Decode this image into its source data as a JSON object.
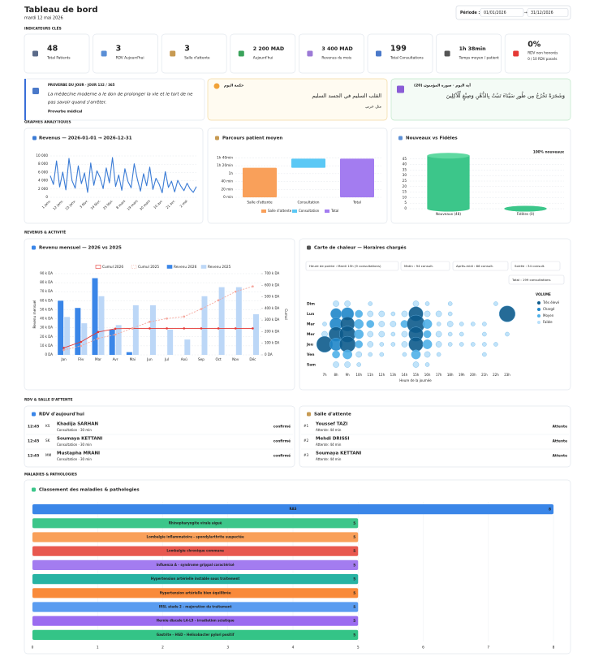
{
  "header": {
    "title": "Tableau de bord",
    "date": "mardi 12 mai 2026",
    "period_label": "Période :",
    "period_start": "01/01/2026",
    "period_sep": "→",
    "period_end": "31/12/2026"
  },
  "sections": [
    "INDICATEURS CLÉS",
    "GRAPHES ANALYTIQUES",
    "REVENUS & ACTIVITÉ",
    "RDV & SALLE D'ATTENTE",
    "MALADIES & PATHOLOGIES"
  ],
  "kpis": [
    {
      "value": 48,
      "label": "Total Patients"
    },
    {
      "value": 3,
      "label": "RDV Aujourd'hui"
    },
    {
      "value": 3,
      "label": "Salle d'attente"
    },
    {
      "value": "2 200 MAD",
      "label": "Aujourd'hui"
    },
    {
      "value": "3 400 MAD",
      "label": "Revenus du mois"
    },
    {
      "value": 199,
      "label": "Total Consultations"
    },
    {
      "value": "1h 38min",
      "label": "Temps moyen / patient"
    },
    {
      "value": "0%",
      "label": "RDV non honorés",
      "note": "0 / 10 RDV passés"
    }
  ],
  "quotes": [
    {
      "label": "PROVERBE DU JOUR · JOUR 132 / 365",
      "lines": [
        "La médecine moderne a le don de prolonger la vie et le tort de ne",
        "pas savoir quand s'arrêter."
      ],
      "source": "Proverbe médical"
    },
    {
      "label": "حكمة اليوم",
      "lines": [
        "القلب السليم في الجسد السليم"
      ],
      "source": "مثل عربي"
    },
    {
      "label": "آية اليوم · سورة المؤمنون (20)",
      "lines": [
        "وَشَجَرَةً تَخْرُجُ مِن طُورِ سَيْنَاءَ تَنبُتُ بِالدُّهْنِ وَصِبْغٍ لِّلْآكِلِينَ"
      ]
    }
  ],
  "chart_data": [
    {
      "type": "line",
      "title": "Revenus — 2026-01-01 → 2026-12-31",
      "color": "#3a7bd5",
      "categories": [
        "1 janv.",
        null,
        null,
        null,
        "12 janv.",
        null,
        null,
        null,
        "23 janv.",
        null,
        null,
        null,
        "3 févr.",
        null,
        null,
        null,
        "14 févr.",
        null,
        null,
        null,
        "25 févr.",
        null,
        null,
        null,
        "8 mars",
        null,
        null,
        null,
        "19 mars",
        null,
        null,
        null,
        "30 mars",
        null,
        null,
        null,
        "10 avr.",
        null,
        null,
        null,
        "21 avr.",
        null,
        null,
        null,
        "2 mai",
        null,
        null,
        null
      ],
      "values": [
        5200,
        3100,
        8800,
        2500,
        6100,
        1800,
        9400,
        4000,
        2200,
        7600,
        3300,
        5900,
        1200,
        8300,
        2900,
        6400,
        4800,
        2100,
        7100,
        3500,
        9600,
        2600,
        5400,
        1700,
        6900,
        3800,
        2300,
        8100,
        4400,
        1500,
        5700,
        2800,
        7300,
        1900,
        4600,
        3200,
        1100,
        6200,
        2400,
        3900,
        1300,
        4100,
        2700,
        1600,
        3400,
        2000,
        1200,
        2600
      ],
      "ylim": [
        0,
        10000
      ],
      "yticks": [
        0,
        {
          "value": 2000,
          "label": "2 000"
        },
        {
          "value": 4000,
          "label": "4 000"
        },
        {
          "value": 6000,
          "label": "6 000"
        },
        {
          "value": 8000,
          "label": "8 000"
        },
        {
          "value": 10000,
          "label": "10 000"
        }
      ],
      "grid": true
    },
    {
      "type": "waterfall",
      "title": "Parcours patient moyen",
      "categories": [
        "Salle d'attente",
        "Consultation",
        "Total"
      ],
      "values": [
        75,
        23,
        98
      ],
      "colors": [
        "#f9a05a",
        "#5bc8f5",
        "#a37cf0"
      ],
      "ylim": [
        0,
        105
      ],
      "yticks": [
        {
          "value": 0,
          "label": "0 min"
        },
        {
          "value": 20,
          "label": "20 min"
        },
        {
          "value": 40,
          "label": "40 min"
        },
        {
          "value": 60,
          "label": "1h"
        },
        {
          "value": 80,
          "label": "1h 20min"
        },
        {
          "value": 100,
          "label": "1h 40min"
        }
      ],
      "grid": true
    },
    {
      "type": "bar",
      "title": "Nouveaux vs Fidèles",
      "categories": [
        "Nouveaux (48)",
        "Fidèles (0)"
      ],
      "values": [
        48,
        0
      ],
      "color": "#3cc68a",
      "annotation": "100% nouveaux",
      "ylim": [
        0,
        50
      ],
      "yticks": [
        0,
        5,
        10,
        15,
        20,
        25,
        30,
        35,
        40,
        45
      ],
      "grid": true
    },
    {
      "type": "combo",
      "title": "Revenu mensuel — 2026 vs 2025",
      "categories": [
        "Jan",
        "Fév",
        "Mar",
        "Avr",
        "Mai",
        "Jun",
        "Jul",
        "Aoû",
        "Sep",
        "Oct",
        "Nov",
        "Déc"
      ],
      "series": [
        {
          "name": "Cumul 2026",
          "type": "line",
          "axis": "y2",
          "color": "#e53935",
          "values": [
            60000,
            112000,
            197000,
            225000,
            228000,
            228000,
            228000,
            228000,
            228000,
            228000,
            228000,
            228000
          ]
        },
        {
          "name": "Cumul 2025",
          "type": "line",
          "axis": "y2",
          "dashed": true,
          "color": "#f4a79d",
          "values": [
            42000,
            77000,
            142000,
            175000,
            230000,
            285000,
            313000,
            330000,
            395000,
            470000,
            545000,
            590000
          ]
        },
        {
          "name": "Revenu 2026",
          "type": "bar",
          "color": "#3a86e8",
          "values": [
            60000,
            52000,
            85000,
            28000,
            3000,
            0,
            0,
            0,
            0,
            0,
            0,
            0
          ]
        },
        {
          "name": "Revenu 2025",
          "type": "bar",
          "color": "#bcd7f7",
          "values": [
            42000,
            35000,
            65000,
            33000,
            55000,
            55000,
            28000,
            17000,
            65000,
            75000,
            75000,
            45000
          ]
        }
      ],
      "ylabel": "Revenu mensuel",
      "y2label": "Cumul",
      "ylim": [
        0,
        90000
      ],
      "yticks": [
        {
          "value": 0,
          "label": "0 DA"
        },
        {
          "value": 10000,
          "label": "10 k DA"
        },
        {
          "value": 20000,
          "label": "20 k DA"
        },
        {
          "value": 30000,
          "label": "30 k DA"
        },
        {
          "value": 40000,
          "label": "40 k DA"
        },
        {
          "value": 50000,
          "label": "50 k DA"
        },
        {
          "value": 60000,
          "label": "60 k DA"
        },
        {
          "value": 70000,
          "label": "70 k DA"
        },
        {
          "value": 80000,
          "label": "80 k DA"
        },
        {
          "value": 90000,
          "label": "90 k DA"
        }
      ],
      "y2lim": [
        0,
        700000
      ],
      "y2ticks": [
        {
          "value": 0,
          "label": "0 DA"
        },
        {
          "value": 100000,
          "label": "100 k DA"
        },
        {
          "value": 200000,
          "label": "200 k DA"
        },
        {
          "value": 300000,
          "label": "300 k DA"
        },
        {
          "value": 400000,
          "label": "400 k DA"
        },
        {
          "value": 500000,
          "label": "500 k DA"
        },
        {
          "value": 600000,
          "label": "600 k DA"
        },
        {
          "value": 700000,
          "label": "700 k DA"
        }
      ],
      "grid": true,
      "legend": "top"
    },
    {
      "type": "heatmap",
      "title": "Carte de chaleur — Horaires chargés",
      "annotations": [
        "Heure de pointe : Mardi 15h (9 consultations)",
        "Matin : 94 consult.",
        "Après-midi : 66 consult.",
        "Soirée : 34 consult.",
        "Total : 199 consultations"
      ],
      "x": [
        "7h",
        "8h",
        "9h",
        "10h",
        "11h",
        "12h",
        "13h",
        "14h",
        "15h",
        "16h",
        "17h",
        "18h",
        "19h",
        "20h",
        "21h",
        "22h",
        "23h"
      ],
      "y": [
        "Dim",
        "Lun",
        "Mar",
        "Mer",
        "Jeu",
        "Ven",
        "Sam"
      ],
      "values": [
        [
          null,
          2,
          2,
          null,
          1,
          null,
          null,
          null,
          2,
          1,
          null,
          1,
          null,
          null,
          null,
          1,
          null
        ],
        [
          null,
          5,
          6,
          3,
          2,
          2,
          1,
          2,
          7,
          2,
          2,
          1,
          null,
          null,
          null,
          null,
          8
        ],
        [
          1,
          6,
          7,
          4,
          3,
          2,
          2,
          3,
          9,
          4,
          1,
          2,
          1,
          1,
          1,
          null,
          null
        ],
        [
          2,
          7,
          8,
          4,
          2,
          2,
          1,
          2,
          7,
          3,
          2,
          1,
          1,
          null,
          1,
          null,
          1
        ],
        [
          8,
          6,
          8,
          3,
          2,
          1,
          1,
          2,
          7,
          4,
          2,
          1,
          1,
          1,
          1,
          1,
          null
        ],
        [
          null,
          3,
          4,
          2,
          1,
          1,
          null,
          1,
          4,
          2,
          1,
          null,
          null,
          null,
          1,
          null,
          null
        ],
        [
          null,
          2,
          2,
          1,
          null,
          null,
          null,
          null,
          2,
          1,
          null,
          null,
          null,
          null,
          null,
          null,
          null
        ]
      ],
      "xlabel": "Heure de la journée",
      "legend_title": "VOLUME",
      "legend_labels": [
        "Très élevé",
        "Chargé",
        "Moyen",
        "Faible"
      ],
      "colors": [
        "#0d5b8c",
        "#1f86c9",
        "#4fb0e8",
        "#b9e0fa"
      ]
    },
    {
      "type": "hbar",
      "title": "Classement des maladies & pathologies",
      "categories": [
        "RAS",
        "Rhinopharyngite virale aiguë",
        "Lombalgie inflammatoire - spondylarthrite suspectée",
        "Lombalgie chronique commune",
        "Influenza A - syndrome grippal caractérisé",
        "Hypertension artérielle instable sous traitement",
        "Hypertension artérielle bien équilibrée",
        "IRSL stade 2 - majoration du traitement",
        "Hernie discale L4-L5 - irradiation sciatique",
        "Gastrite - HGD - Helicobacter pylori positif"
      ],
      "values": [
        8,
        5,
        5,
        5,
        5,
        5,
        5,
        5,
        5,
        5
      ],
      "colors": [
        "#3a86e8",
        "#3cc68a",
        "#f9a05a",
        "#e8584f",
        "#a37cf0",
        "#27b3a3",
        "#f98a3a",
        "#5a9cf0",
        "#9b6cf0",
        "#34c487"
      ],
      "xlim": [
        0,
        8
      ],
      "xticks": [
        0,
        1,
        2,
        3,
        4,
        5,
        6,
        7,
        8
      ],
      "grid": true
    }
  ],
  "rdv_today": {
    "title": "RDV d'aujourd'hui",
    "items": [
      {
        "time": "12:45",
        "code": "KS",
        "name": "Khadija SARHAN",
        "detail": "Consultation · 30 min",
        "status": "confirmé"
      },
      {
        "time": "12:45",
        "code": "SK",
        "name": "Soumaya KETTANI",
        "detail": "Consultation · 30 min",
        "status": "confirmé"
      },
      {
        "time": "12:45",
        "code": "MM",
        "name": "Mustapha MRANI",
        "detail": "Consultation · 30 min",
        "status": "confirmé"
      }
    ]
  },
  "waiting": {
    "title": "Salle d'attente",
    "items": [
      {
        "rank": "#1",
        "name": "Youssef TAZI",
        "detail": "Attente: 44 min",
        "status": "Attente"
      },
      {
        "rank": "#2",
        "name": "Mehdi DRISSI",
        "detail": "Attente: 44 min",
        "status": "Attente"
      },
      {
        "rank": "#3",
        "name": "Soumaya KETTANI",
        "detail": "Attente: 44 min",
        "status": "Attente"
      }
    ]
  }
}
